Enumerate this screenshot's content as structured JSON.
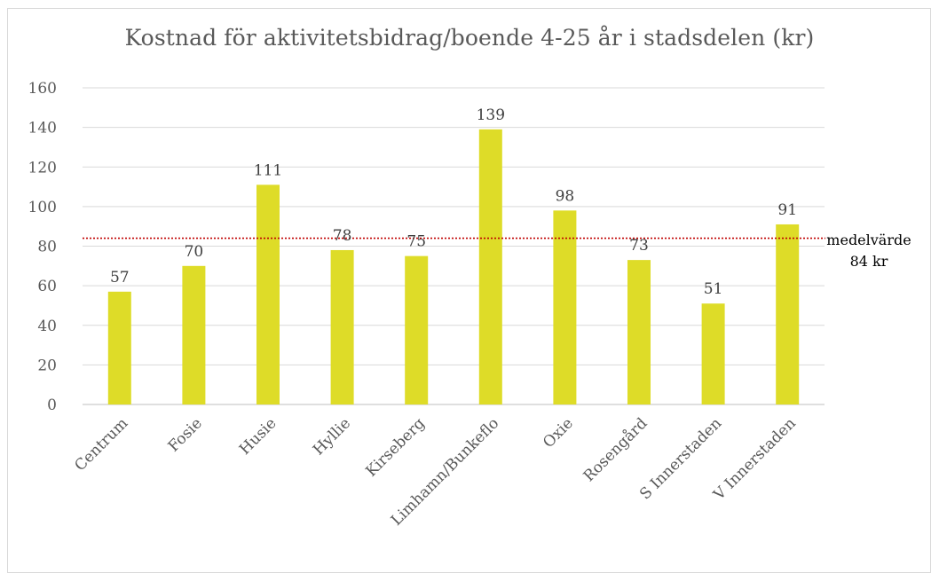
{
  "chart_data": {
    "type": "bar",
    "title": "Kostnad för aktivitetsbidrag/boende 4-25 år i stadsdelen (kr)",
    "categories": [
      "Centrum",
      "Fosie",
      "Husie",
      "Hyllie",
      "Kirseberg",
      "Limhamn/Bunkeflo",
      "Oxie",
      "Rosengård",
      "S Innerstaden",
      "V Innerstaden"
    ],
    "values": [
      57,
      70,
      111,
      78,
      75,
      139,
      98,
      73,
      51,
      91
    ],
    "ylim": [
      0,
      160
    ],
    "yticks": [
      0,
      20,
      40,
      60,
      80,
      100,
      120,
      140,
      160
    ],
    "grid": true,
    "bar_color": "#dedc28",
    "reference_line": {
      "value": 84,
      "color": "#c00000",
      "style": "dotted",
      "label_lines": [
        "medelvärde",
        "84 kr"
      ]
    }
  }
}
